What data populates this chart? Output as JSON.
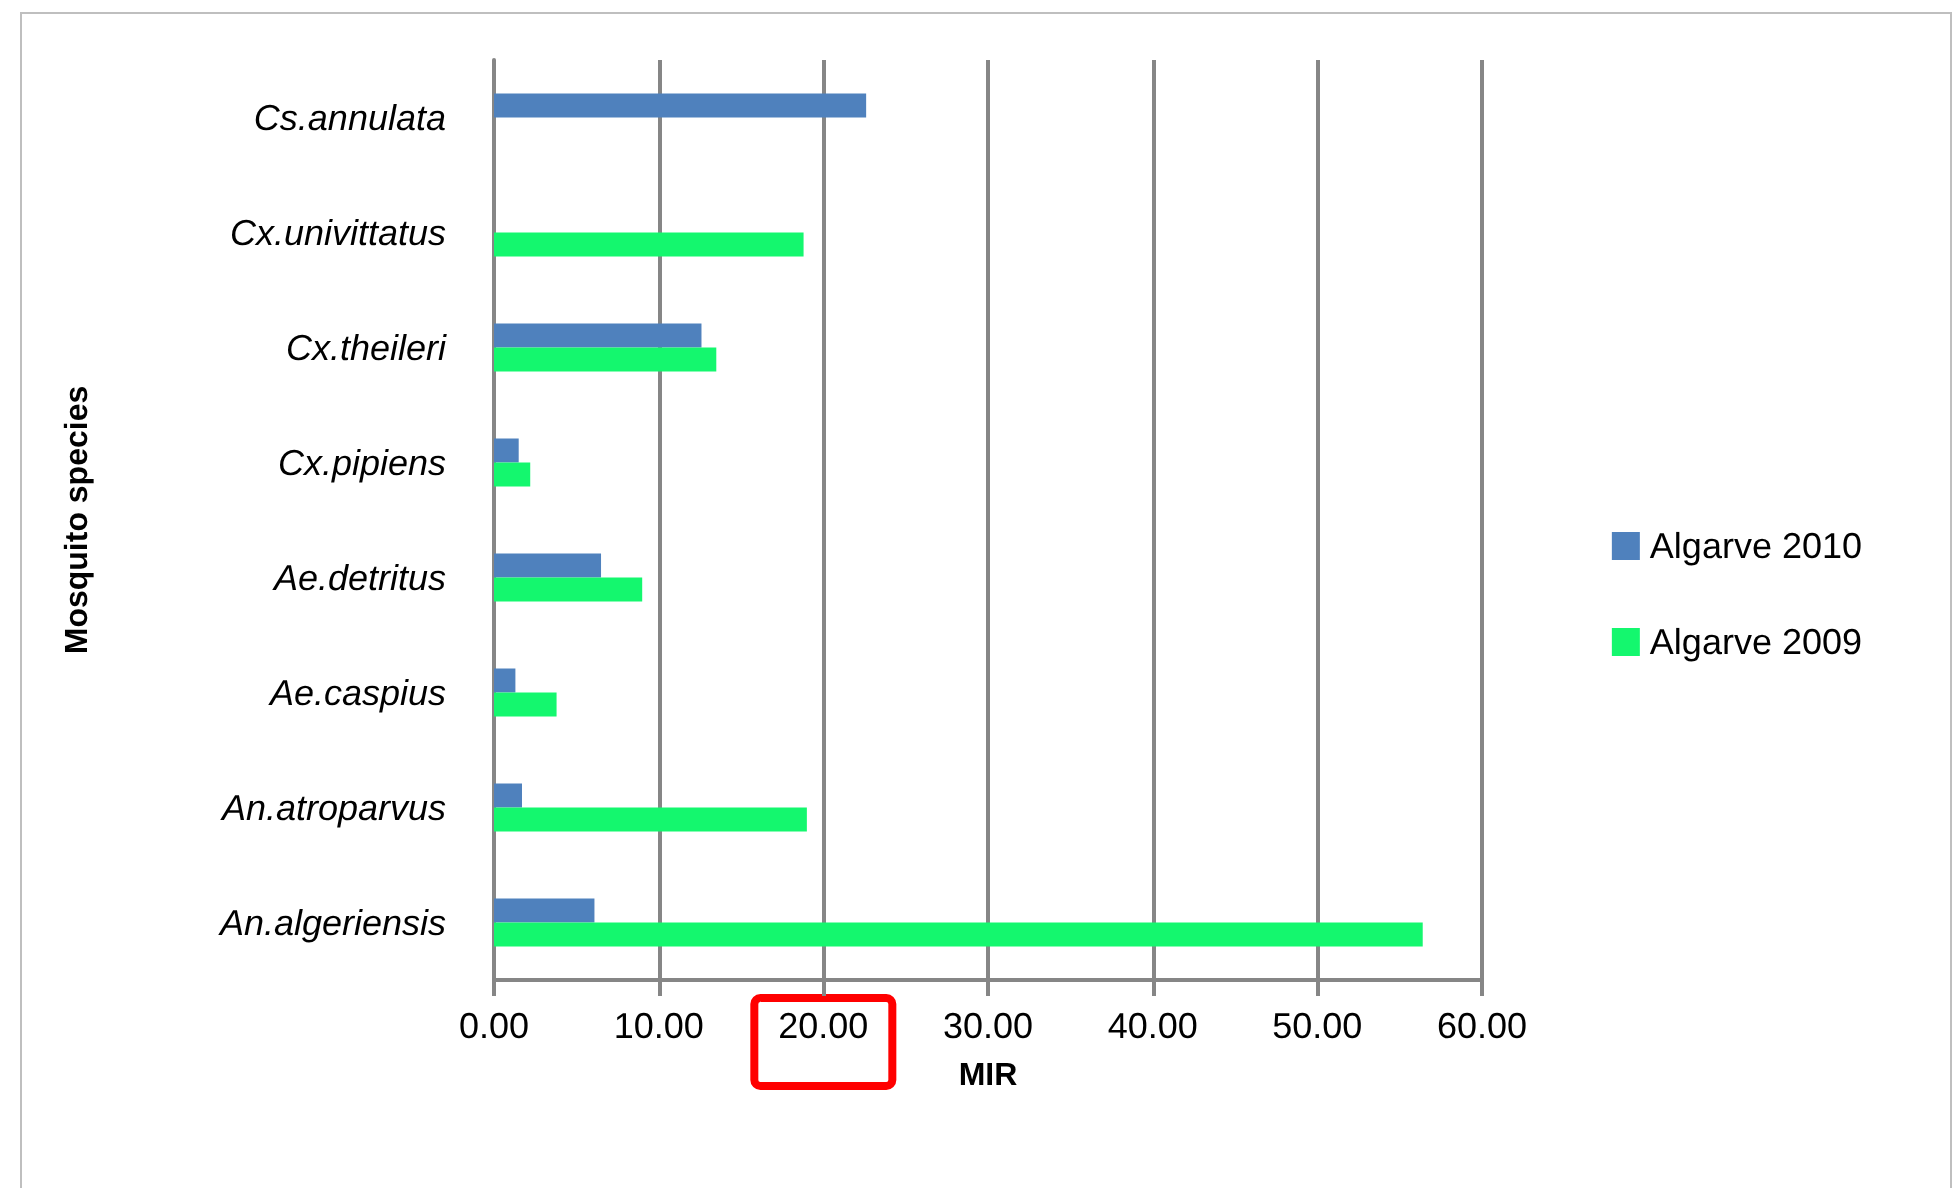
{
  "chart_data": {
    "type": "bar",
    "orientation": "horizontal",
    "xlabel": "MIR",
    "ylabel": "Mosquito species",
    "categories": [
      "Cs.annulata",
      "Cx.univittatus",
      "Cx.theileri",
      "Cx.pipiens",
      "Ae.detritus",
      "Ae.caspius",
      "An.atroparvus",
      "An.algeriensis"
    ],
    "series": [
      {
        "name": "Algarve 2010",
        "color": "#4f81bd",
        "values": [
          22.6,
          null,
          12.6,
          1.5,
          6.5,
          1.3,
          1.7,
          6.1
        ]
      },
      {
        "name": "Algarve 2009",
        "color": "#14f76e",
        "values": [
          null,
          18.8,
          13.5,
          2.2,
          9.0,
          3.8,
          19.0,
          56.4
        ]
      }
    ],
    "xlim": [
      0,
      60
    ],
    "xticks": [
      {
        "value": 0,
        "label": "0.00"
      },
      {
        "value": 10,
        "label": "10.00"
      },
      {
        "value": 20,
        "label": "20.00"
      },
      {
        "value": 30,
        "label": "30.00"
      },
      {
        "value": 40,
        "label": "40.00"
      },
      {
        "value": 50,
        "label": "50.00"
      },
      {
        "value": 60,
        "label": "60.00"
      }
    ],
    "grid": "x",
    "legend": "right"
  }
}
